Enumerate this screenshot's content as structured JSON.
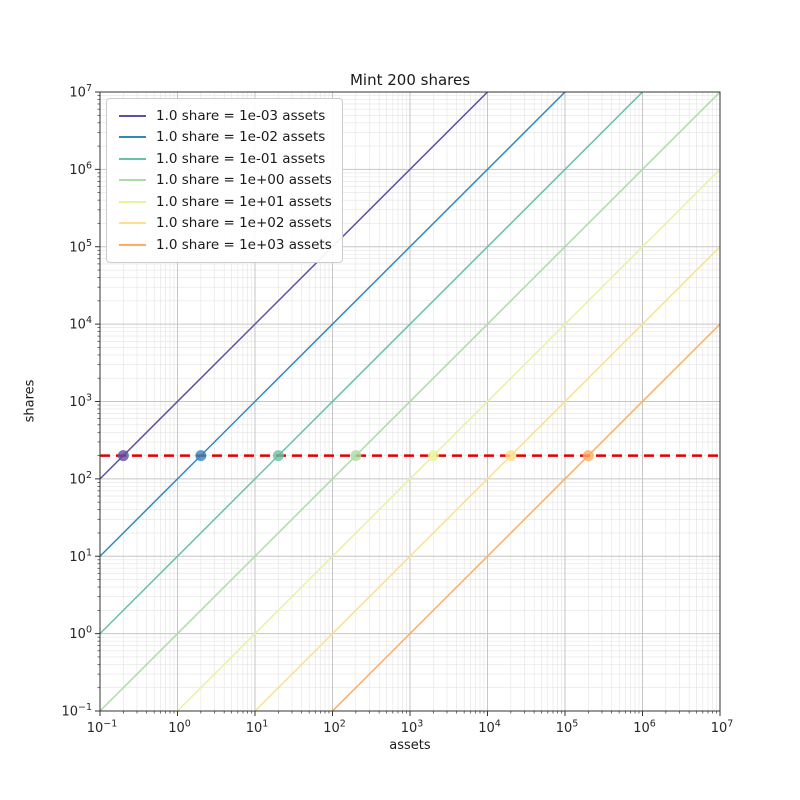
{
  "chart_data": {
    "type": "line",
    "title": "Mint 200 shares",
    "xlabel": "assets",
    "ylabel": "shares",
    "xscale": "log",
    "yscale": "log",
    "xlim": [
      0.1,
      10000000
    ],
    "ylim": [
      0.1,
      10000000
    ],
    "x_tick_exponents": [
      -1,
      0,
      1,
      2,
      3,
      4,
      5,
      6,
      7
    ],
    "y_tick_exponents": [
      -1,
      0,
      1,
      2,
      3,
      4,
      5,
      6,
      7
    ],
    "grid": {
      "major": true,
      "minor": true,
      "major_color": "#c6c6c6",
      "minor_color": "#e4e4e4"
    },
    "legend": {
      "position": "upper left"
    },
    "target_line": {
      "shares": 200,
      "color": "#e00000",
      "style": "dashed"
    },
    "series": [
      {
        "label": "1.0 share = 1e-03 assets",
        "assets_per_share": 0.001,
        "color": "#5e4fa2",
        "mint_point": {
          "assets": 0.2,
          "shares": 200
        }
      },
      {
        "label": "1.0 share = 1e-02 assets",
        "assets_per_share": 0.01,
        "color": "#3288bd",
        "mint_point": {
          "assets": 2,
          "shares": 200
        }
      },
      {
        "label": "1.0 share = 1e-01 assets",
        "assets_per_share": 0.1,
        "color": "#66c2a5",
        "mint_point": {
          "assets": 20,
          "shares": 200
        }
      },
      {
        "label": "1.0 share = 1e+00 assets",
        "assets_per_share": 1,
        "color": "#abdda4",
        "mint_point": {
          "assets": 200,
          "shares": 200
        }
      },
      {
        "label": "1.0 share = 1e+01 assets",
        "assets_per_share": 10,
        "color": "#e6f598",
        "mint_point": {
          "assets": 2000,
          "shares": 200
        }
      },
      {
        "label": "1.0 share = 1e+02 assets",
        "assets_per_share": 100,
        "color": "#fee08b",
        "mint_point": {
          "assets": 20000,
          "shares": 200
        }
      },
      {
        "label": "1.0 share = 1e+03 assets",
        "assets_per_share": 1000,
        "color": "#fdae61",
        "mint_point": {
          "assets": 200000,
          "shares": 200
        }
      }
    ]
  }
}
